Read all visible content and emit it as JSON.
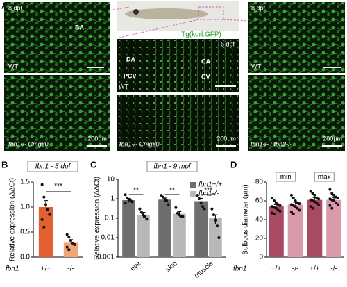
{
  "panel_a": {
    "label": "A",
    "transgene": "Tg(kdrl:GFP)",
    "images": [
      {
        "labels": [
          "8 dpf",
          "BA",
          "WT"
        ]
      },
      {
        "labels": [
          "fbn1-/- Cmg80",
          "200μm"
        ]
      },
      {
        "labels": [
          "6 dpf",
          "DA",
          "CA",
          "PCV",
          "CV",
          "WT"
        ]
      },
      {
        "labels": [
          "fbn1-/- Cmg80",
          "200μm"
        ]
      },
      {
        "labels": [
          "8 dpf",
          "WT"
        ]
      },
      {
        "labels": [
          "fbn1-/- ; fbn2-/-",
          "200μm"
        ]
      }
    ]
  },
  "chart_data": [
    {
      "label": "B",
      "type": "bar",
      "title": "fbn1 - 5 dpf",
      "y_label": "Relative expression (ΔΔCt)",
      "x_label": "fbn1",
      "categories": [
        "+/+",
        "-/-"
      ],
      "series": [
        {
          "colors": [
            "#e0602f",
            "#f2a577"
          ],
          "values": [
            1.0,
            0.3
          ],
          "errors": [
            0.13,
            0.05
          ],
          "points": [
            [
              1.45,
              1.2,
              1.05,
              0.95,
              0.85,
              0.75,
              0.6
            ],
            [
              0.45,
              0.4,
              0.33,
              0.28,
              0.25,
              0.2,
              0.15
            ]
          ]
        }
      ],
      "ylim": [
        0,
        1.5
      ],
      "yticks": [
        {
          "value": 0,
          "label": "0.0"
        },
        {
          "value": 0.5,
          "label": "0.5"
        },
        {
          "value": 1,
          "label": "1.0"
        },
        {
          "value": 1.5,
          "label": "1.5"
        }
      ],
      "significance": [
        "***"
      ]
    },
    {
      "label": "C",
      "type": "bar",
      "title": "fbn1 - 9 mpf",
      "y_label": "Relative expression (ΔΔCt)",
      "log_scale": true,
      "categories": [
        "eye",
        "skin",
        "muscle"
      ],
      "series": [
        {
          "name": "fbn1+/+",
          "color": "#6e6e6e",
          "values": [
            0.85,
            0.9,
            0.75
          ],
          "errors": [
            0.2,
            0.2,
            0.3
          ],
          "points": [
            [
              1.6,
              1.1,
              0.9,
              0.8,
              0.7,
              0.6
            ],
            [
              1.5,
              1.2,
              0.9,
              0.8,
              0.5
            ],
            [
              1.5,
              1.0,
              0.6,
              0.4,
              0.3
            ]
          ]
        },
        {
          "name": "fbn1-/-",
          "color": "#b8b8b8",
          "values": [
            0.15,
            0.17,
            0.1
          ],
          "errors": [
            0.05,
            0.05,
            0.05
          ],
          "points": [
            [
              0.3,
              0.2,
              0.15,
              0.12,
              0.09
            ],
            [
              0.35,
              0.18,
              0.15,
              0.12,
              0.12
            ],
            [
              0.3,
              0.15,
              0.08,
              0.04,
              0.01
            ]
          ]
        }
      ],
      "ylim": [
        0.001,
        10
      ],
      "yticks": [
        0.001,
        0.01,
        0.1,
        1,
        10
      ],
      "significance": [
        "**",
        "**",
        "***"
      ]
    },
    {
      "label": "D",
      "type": "bar",
      "y_label": "Bulbous diameter (μm)",
      "x_label": "fbn1",
      "groups": [
        "min",
        "max"
      ],
      "categories": [
        "+/+",
        "-/-",
        "+/+",
        "-/-"
      ],
      "series": [
        {
          "colors": [
            "#a94a63",
            "#d99aaa",
            "#a94a63",
            "#d99aaa"
          ],
          "values": [
            54,
            56,
            61,
            61
          ],
          "errors": [
            2,
            2.5,
            2.5,
            2.5
          ],
          "points": [
            [
              63,
              60,
              58,
              56,
              55,
              54,
              53,
              52,
              50,
              49,
              47,
              46
            ],
            [
              66,
              63,
              60,
              58,
              57,
              56,
              55,
              54,
              52,
              50,
              48,
              46
            ],
            [
              70,
              68,
              66,
              63,
              62,
              61,
              60,
              59,
              58,
              56,
              54,
              52
            ],
            [
              72,
              68,
              66,
              64,
              63,
              62,
              61,
              60,
              58,
              56,
              55,
              52
            ]
          ]
        }
      ],
      "ylim": [
        0,
        80
      ],
      "yticks": [
        0,
        20,
        40,
        60,
        80
      ]
    }
  ]
}
